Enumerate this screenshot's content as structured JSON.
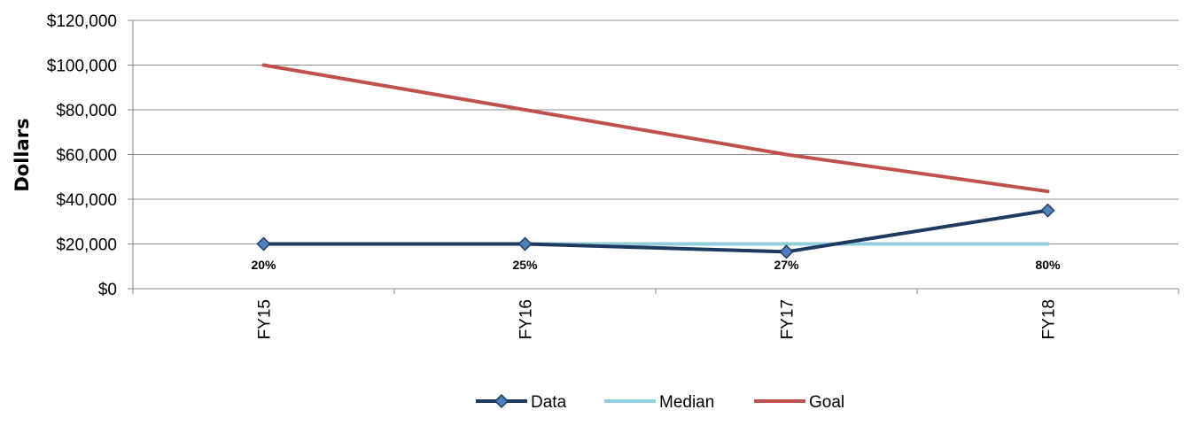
{
  "chart_data": {
    "type": "line",
    "categories": [
      "FY15",
      "FY16",
      "FY17",
      "FY18"
    ],
    "ylabel": "Dollars",
    "ylim": [
      0,
      120000
    ],
    "ytick_labels": [
      "$0",
      "$20,000",
      "$40,000",
      "$60,000",
      "$80,000",
      "$100,000",
      "$120,000"
    ],
    "grid": true,
    "legend_position": "bottom",
    "series": [
      {
        "name": "Data",
        "values": [
          20000,
          20000,
          16500,
          35000
        ],
        "color": "#1f3a5f",
        "marker": "diamond"
      },
      {
        "name": "Median",
        "values": [
          20000,
          20000,
          20000,
          20000
        ],
        "color": "#92cddc"
      },
      {
        "name": "Goal",
        "values": [
          100000,
          80000,
          60000,
          43500
        ],
        "color": "#c0504d"
      }
    ],
    "data_labels": [
      "20%",
      "25%",
      "27%",
      "80%"
    ]
  }
}
